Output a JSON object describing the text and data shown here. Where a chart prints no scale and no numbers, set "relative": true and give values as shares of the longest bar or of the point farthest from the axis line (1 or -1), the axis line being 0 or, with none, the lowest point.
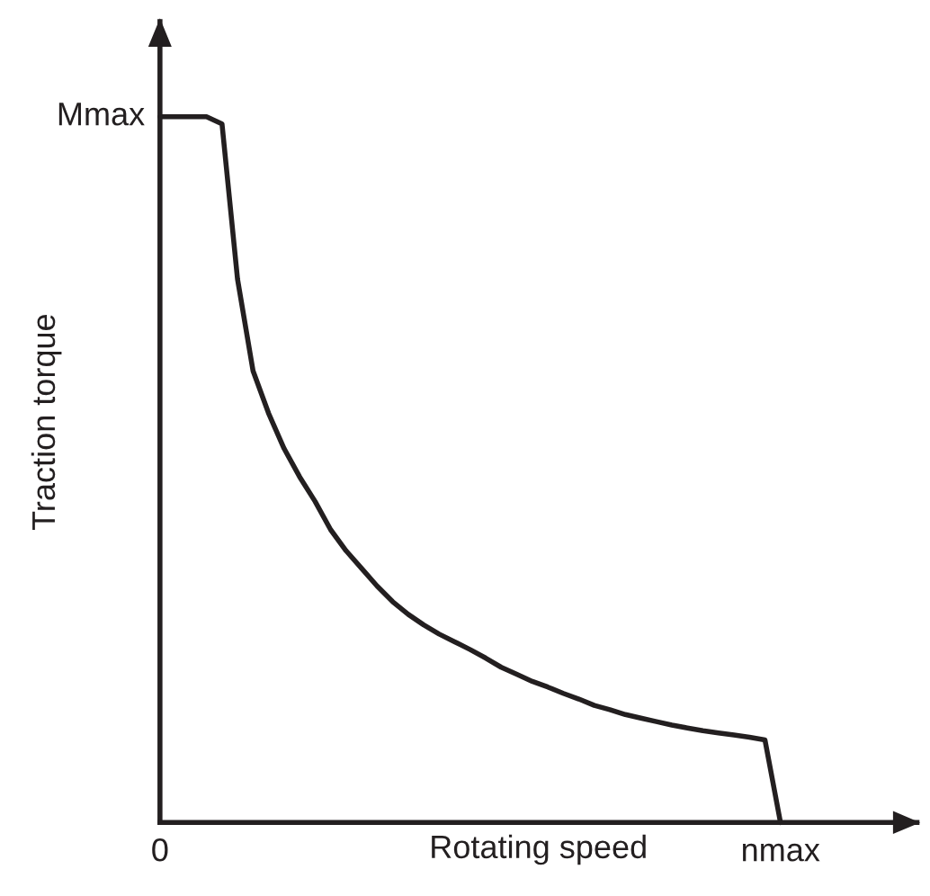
{
  "chart_data": {
    "type": "line",
    "relative": true,
    "xlabel": "Rotating speed",
    "ylabel": "Traction torque",
    "categories": [
      null,
      null,
      null,
      null,
      null,
      null,
      null,
      null,
      null,
      null,
      null,
      null,
      null,
      null,
      null,
      null,
      null,
      null,
      null,
      null,
      null,
      null,
      null,
      null,
      null,
      null,
      null,
      null,
      null,
      null,
      null,
      null,
      null,
      null,
      null,
      null,
      null,
      null,
      null,
      null,
      null
    ],
    "series": [
      {
        "color": "#231f20",
        "values": [
          1,
          1,
          1,
          1,
          0.99,
          0.77,
          0.64,
          0.58,
          0.53,
          0.49,
          0.455,
          0.415,
          0.385,
          0.36,
          0.335,
          0.313,
          0.295,
          0.28,
          0.267,
          0.256,
          0.245,
          0.233,
          0.22,
          0.21,
          0.2,
          0.192,
          0.183,
          0.175,
          0.166,
          0.16,
          0.153,
          0.148,
          0.143,
          0.138,
          0.134,
          0.13,
          0.127,
          0.124,
          0.121,
          0.117,
          0
        ]
      }
    ],
    "annotations": [
      "Mmax",
      "0",
      "nmax"
    ],
    "marker": "none",
    "line_style": "solid"
  }
}
